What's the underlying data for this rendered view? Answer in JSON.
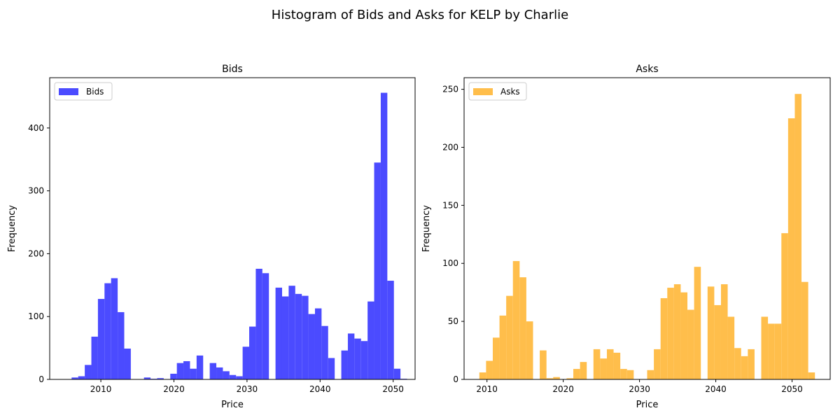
{
  "figure": {
    "suptitle": "Histogram of Bids and Asks for KELP by Charlie"
  },
  "chart_data": [
    {
      "type": "bar",
      "title": "Bids",
      "xlabel": "Price",
      "ylabel": "Frequency",
      "legend": "top-left",
      "color": "#4b4bff",
      "series": [
        {
          "name": "Bids"
        }
      ],
      "xlim": [
        2003,
        2053
      ],
      "ylim": [
        0,
        480
      ],
      "xticks": [
        2010,
        2020,
        2030,
        2040,
        2050
      ],
      "yticks": [
        0,
        100,
        200,
        300,
        400
      ],
      "bin_start": 2006,
      "bin_width": 0.9,
      "values": [
        3,
        5,
        23,
        68,
        128,
        153,
        161,
        107,
        49,
        0,
        0,
        3,
        1,
        2,
        0,
        9,
        26,
        29,
        17,
        38,
        0,
        26,
        19,
        13,
        7,
        5,
        52,
        84,
        176,
        169,
        0,
        146,
        132,
        149,
        136,
        133,
        104,
        113,
        85,
        34,
        0,
        46,
        73,
        65,
        61,
        124,
        345,
        456,
        157,
        17,
        1
      ]
    },
    {
      "type": "bar",
      "title": "Asks",
      "xlabel": "Price",
      "ylabel": "Frequency",
      "legend": "top-left",
      "color": "#ffbe4b",
      "series": [
        {
          "name": "Asks"
        }
      ],
      "xlim": [
        2007,
        2055
      ],
      "ylim": [
        0,
        260
      ],
      "xticks": [
        2010,
        2020,
        2030,
        2040,
        2050
      ],
      "yticks": [
        0,
        50,
        100,
        150,
        200,
        250
      ],
      "bin_start": 2009,
      "bin_width": 0.88,
      "values": [
        6,
        16,
        36,
        55,
        72,
        102,
        88,
        50,
        0,
        25,
        1,
        2,
        0,
        1,
        9,
        15,
        0,
        26,
        18,
        26,
        23,
        9,
        8,
        0,
        0,
        8,
        26,
        70,
        79,
        82,
        75,
        60,
        97,
        0,
        80,
        64,
        82,
        54,
        27,
        20,
        26,
        0,
        54,
        48,
        48,
        126,
        225,
        246,
        84,
        6
      ]
    }
  ]
}
